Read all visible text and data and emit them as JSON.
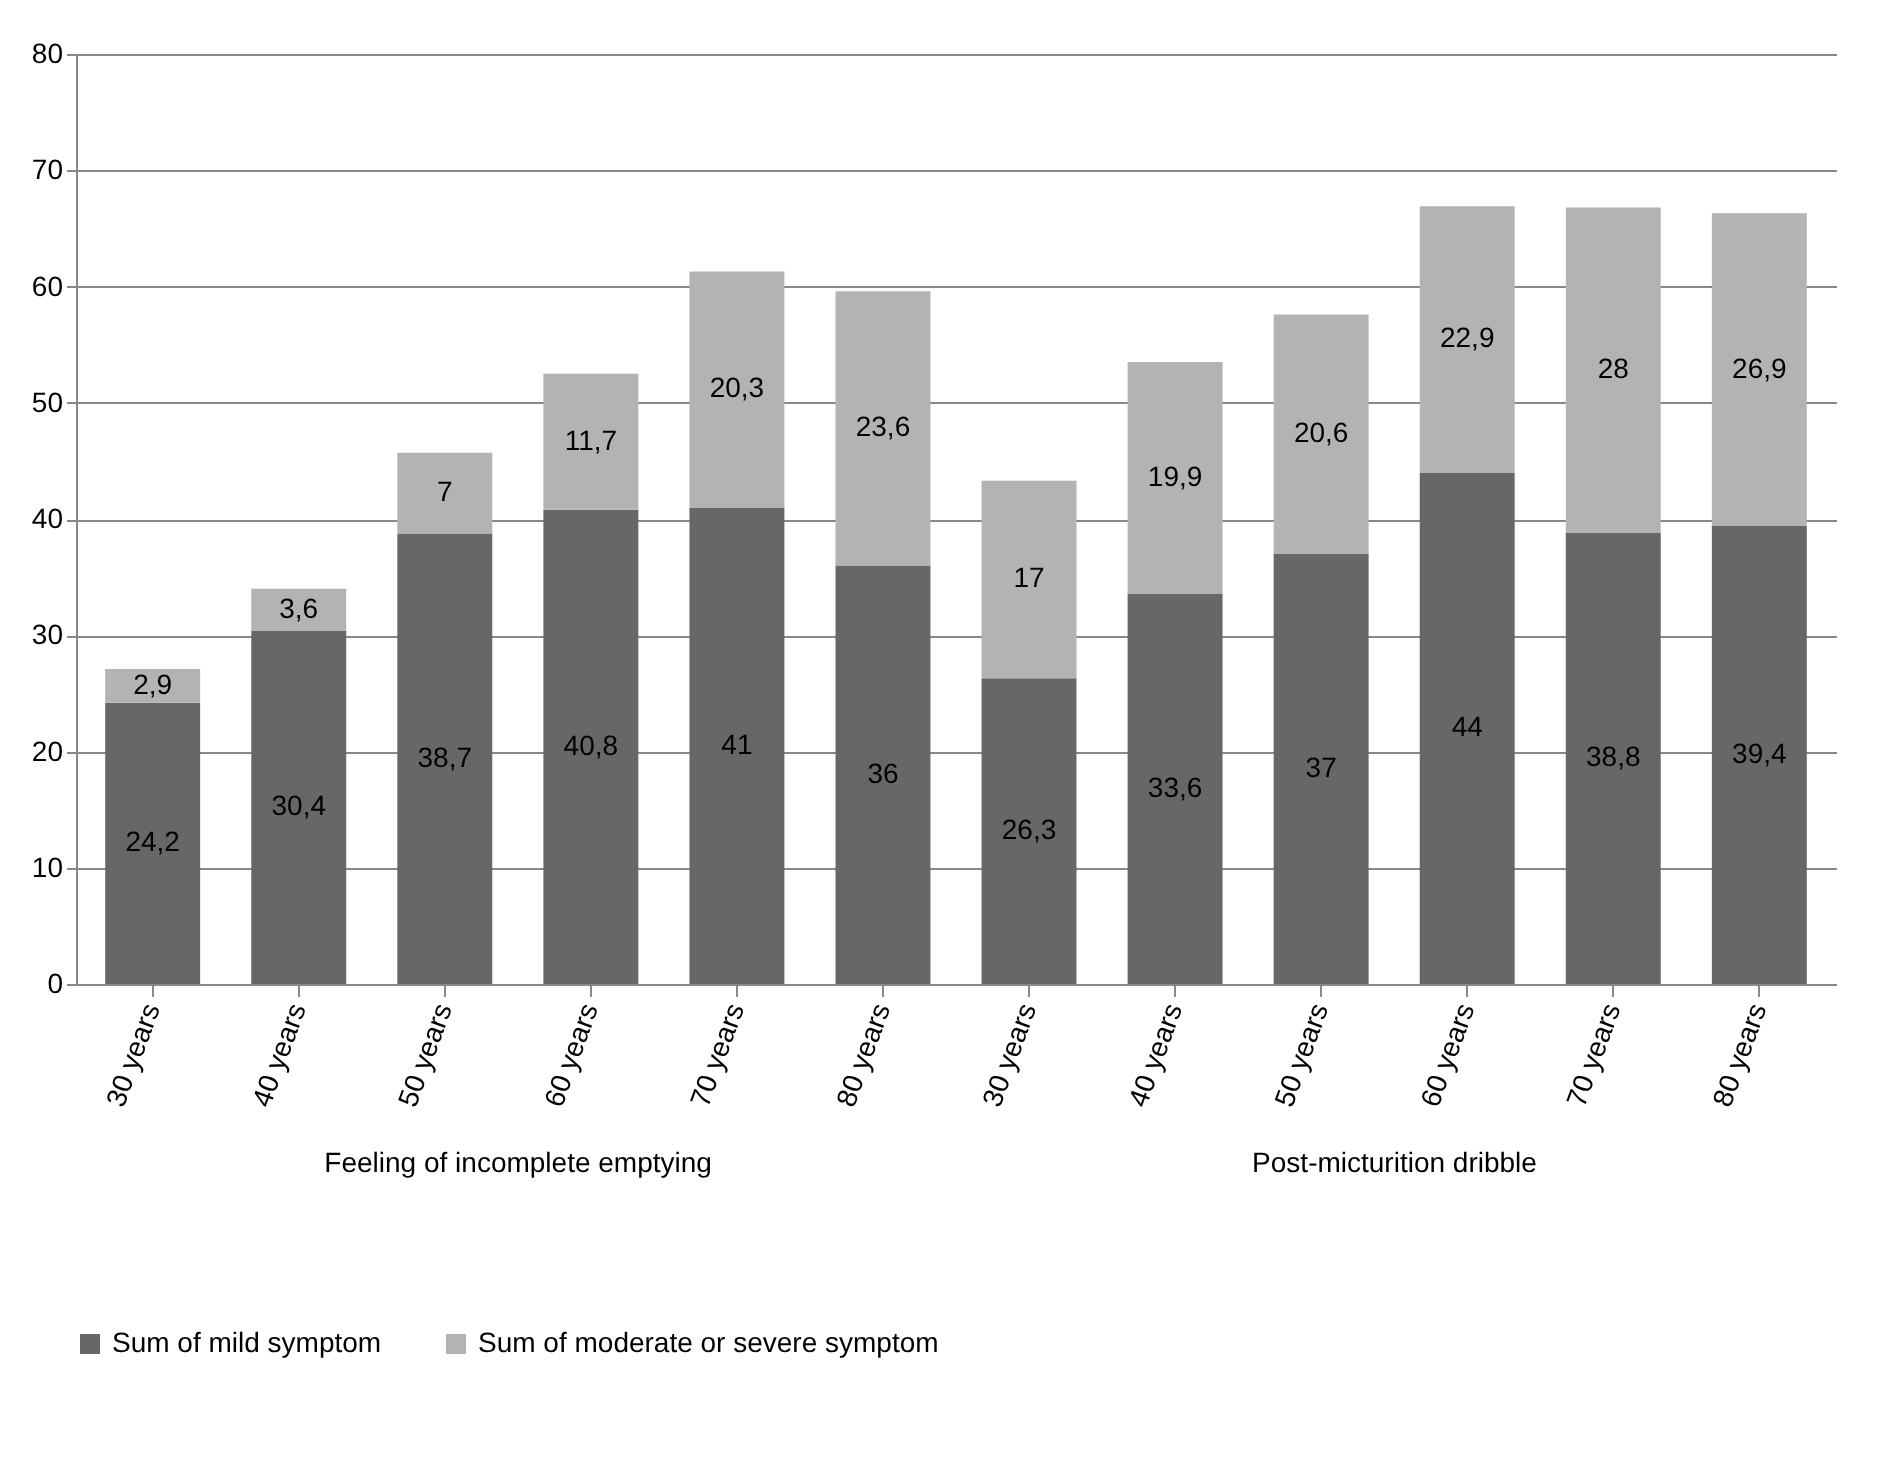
{
  "chart_data": {
    "type": "bar",
    "stacked": true,
    "categories": [
      "30 years",
      "40 years",
      "50 years",
      "60 years",
      "70 years",
      "80 years",
      "30 years",
      "40 years",
      "50 years",
      "60 years",
      "70 years",
      "80 years"
    ],
    "series": [
      {
        "name": "Sum of mild symptom",
        "color": "#676767",
        "values": [
          24.2,
          30.4,
          38.7,
          40.8,
          41,
          36,
          26.3,
          33.6,
          37,
          44,
          38.8,
          39.4
        ],
        "value_labels": [
          "24,2",
          "30,4",
          "38,7",
          "40,8",
          "41",
          "36",
          "26,3",
          "33,6",
          "37",
          "44",
          "38,8",
          "39,4"
        ]
      },
      {
        "name": "Sum of moderate or severe symptom",
        "color": "#b3b3b3",
        "values": [
          2.9,
          3.6,
          7,
          11.7,
          20.3,
          23.6,
          17,
          19.9,
          20.6,
          22.9,
          28,
          26.9
        ],
        "value_labels": [
          "2,9",
          "3,6",
          "7",
          "11,7",
          "20,3",
          "23,6",
          "17",
          "19,9",
          "20,6",
          "22,9",
          "28",
          "26,9"
        ]
      }
    ],
    "annotations": [
      "Feeling of incomplete emptying",
      "Post-micturition dribble"
    ],
    "ylim": [
      0,
      80
    ],
    "yticks": [
      0,
      10,
      20,
      30,
      40,
      50,
      60,
      70,
      80
    ],
    "grid": "y",
    "legend": "bottom"
  }
}
